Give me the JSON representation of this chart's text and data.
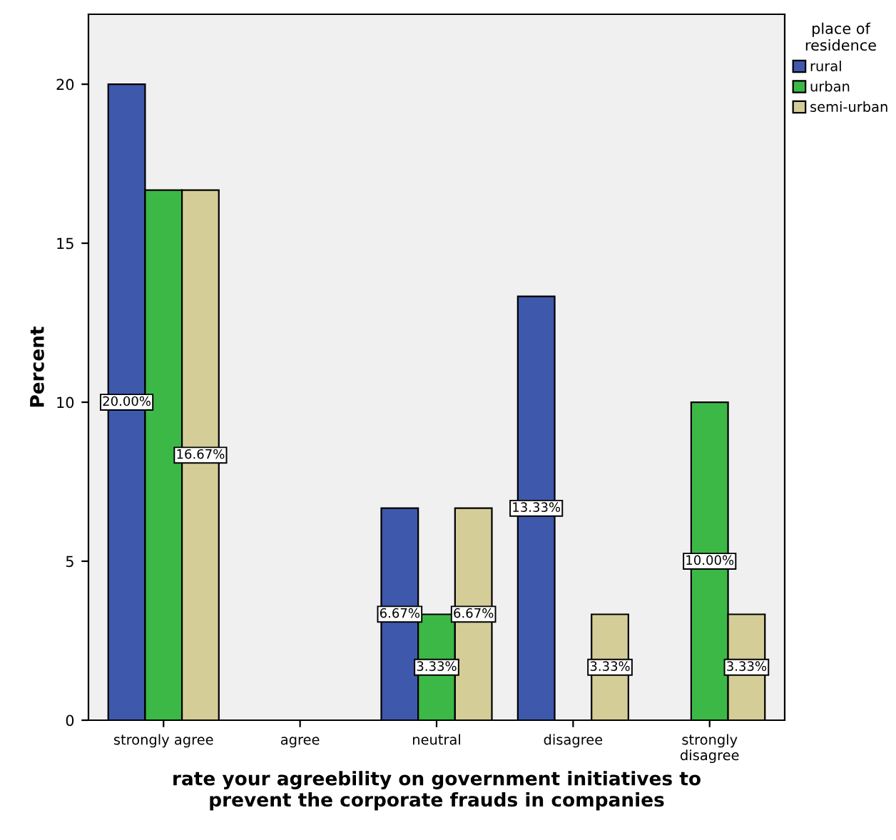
{
  "chart_data": {
    "type": "bar",
    "xlabel": "rate your agreebility on government initiatives to\nprevent the corporate frauds in companies",
    "ylabel": "Percent",
    "legend_title": "place of\nresidence",
    "legend": "right",
    "categories": [
      "strongly agree",
      "agree",
      "neutral",
      "disagree",
      "strongly\ndisagree"
    ],
    "series": [
      {
        "name": "rural",
        "color": "#3e58ac",
        "values": [
          20,
          null,
          6.67,
          13.33,
          null
        ],
        "value_labels": [
          "20.00%",
          null,
          "6.67%",
          "13.33%",
          null
        ]
      },
      {
        "name": "urban",
        "color": "#3cb846",
        "values": [
          16.67,
          null,
          3.33,
          null,
          10
        ],
        "value_labels": [
          null,
          null,
          "3.33%",
          null,
          "10.00%"
        ]
      },
      {
        "name": "semi-urban",
        "color": "#d4cd98",
        "values": [
          16.67,
          null,
          6.67,
          3.33,
          3.33
        ],
        "value_labels": [
          "16.67%",
          null,
          "6.67%",
          "3.33%",
          "3.33%"
        ]
      }
    ],
    "ylim": [
      0,
      22.2
    ],
    "yticks": [
      0,
      5,
      10,
      15,
      20
    ],
    "grid": false
  }
}
